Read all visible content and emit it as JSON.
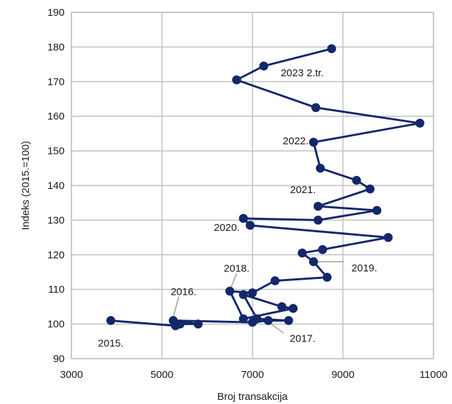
{
  "chart_data": {
    "type": "scatter",
    "xlabel": "Broj transakcija",
    "ylabel": "Indeks (2015.=100)",
    "xlim": [
      3000,
      11000
    ],
    "ylim": [
      90,
      190
    ],
    "xticks": [
      3000,
      5000,
      7000,
      9000,
      11000
    ],
    "yticks": [
      90,
      100,
      110,
      120,
      130,
      140,
      150,
      160,
      170,
      180,
      190
    ],
    "grid": true,
    "colors": {
      "series": "#13276b",
      "grid": "#c0c0c0",
      "callout": "#9e9e9e"
    },
    "series": [
      {
        "x": [
          3870,
          5300,
          5400,
          5800,
          5250,
          7000,
          7350,
          7800,
          7100,
          6800,
          7650,
          7900,
          6800,
          6500,
          7000,
          7500,
          8650,
          8350,
          8100,
          8550,
          10000,
          6950,
          6800,
          8450,
          9750,
          8450,
          9600,
          9300,
          8500,
          8350,
          10700,
          8400,
          6650,
          7250,
          8750
        ],
        "y": [
          101,
          99.5,
          100,
          100,
          101,
          100.5,
          101,
          101,
          101.5,
          108.5,
          105,
          104.5,
          101.5,
          109.5,
          109,
          112.5,
          113.5,
          118,
          120.5,
          121.5,
          125,
          128.5,
          130.5,
          130,
          132.8,
          134,
          139,
          141.5,
          145,
          152.5,
          158,
          162.5,
          170.5,
          174.5,
          179.5
        ]
      }
    ],
    "annotations": [
      {
        "label": "2015.",
        "x": 3870,
        "y": 101
      },
      {
        "label": "2016.",
        "x": 5250,
        "y": 101
      },
      {
        "label": "2017.",
        "x": 7350,
        "y": 101
      },
      {
        "label": "2018.",
        "x": 6500,
        "y": 109.5
      },
      {
        "label": "2019.",
        "x": 8350,
        "y": 118
      },
      {
        "label": "2020.",
        "x": 6950,
        "y": 128.5
      },
      {
        "label": "2021.",
        "x": 8450,
        "y": 134
      },
      {
        "label": "2022.",
        "x": 8350,
        "y": 152.5
      },
      {
        "label": "2023 2.tr.",
        "x": 7250,
        "y": 174.5
      }
    ]
  }
}
